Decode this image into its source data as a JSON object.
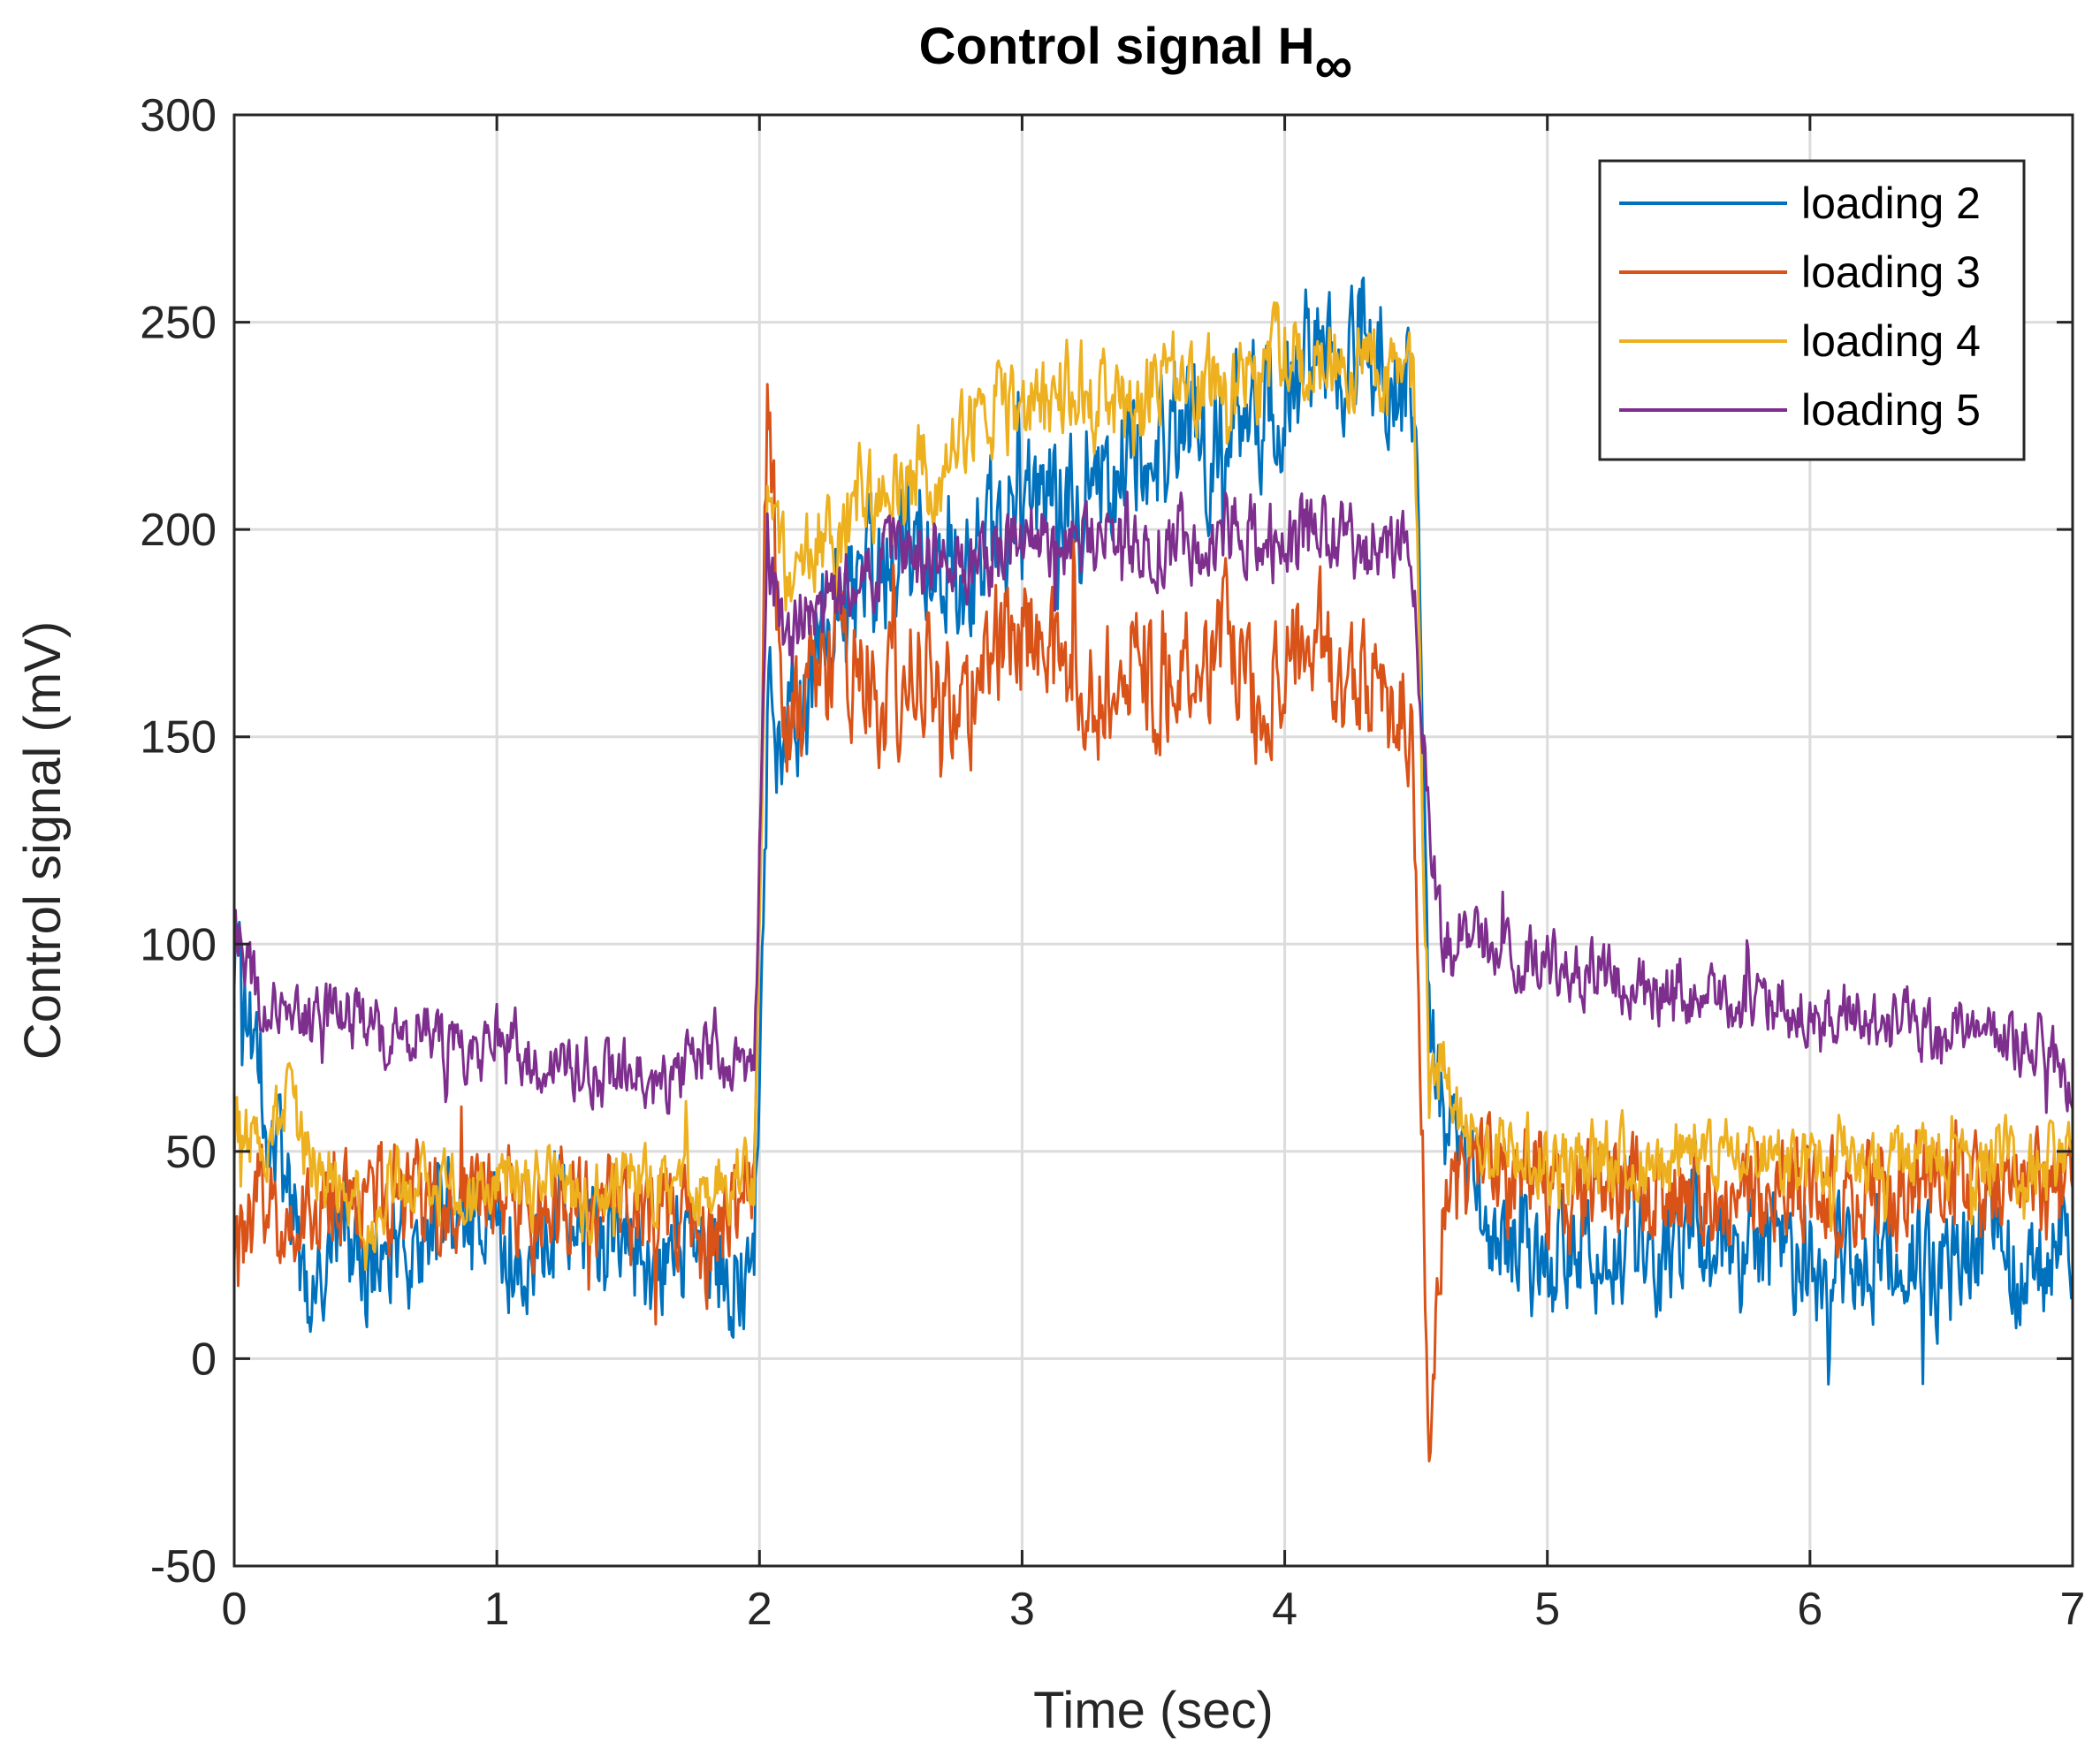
{
  "chart_data": {
    "type": "line",
    "title": "Control signal H",
    "title_subscript": "∞",
    "xlabel": "Time (sec)",
    "ylabel": "Control signal (mV)",
    "xlim": [
      0,
      7
    ],
    "ylim": [
      -50,
      300
    ],
    "xticks": [
      0,
      1,
      2,
      3,
      4,
      5,
      6,
      7
    ],
    "yticks": [
      -50,
      0,
      50,
      100,
      150,
      200,
      250,
      300
    ],
    "xtick_labels": [
      "0",
      "1",
      "2",
      "3",
      "4",
      "5",
      "6",
      "7"
    ],
    "ytick_labels": [
      "-50",
      "0",
      "50",
      "100",
      "150",
      "200",
      "250",
      "300"
    ],
    "grid": true,
    "legend_position": "top-right",
    "series": [
      {
        "name": "loading 2",
        "color": "#0072BD",
        "x": [
          0,
          0.1,
          0.2,
          0.3,
          0.4,
          0.5,
          0.6,
          0.7,
          0.8,
          0.9,
          1.0,
          1.1,
          1.2,
          1.3,
          1.4,
          1.5,
          1.6,
          1.7,
          1.8,
          1.9,
          1.98,
          2.03,
          2.1,
          2.2,
          2.3,
          2.4,
          2.5,
          2.6,
          2.7,
          2.8,
          2.9,
          3.0,
          3.1,
          3.2,
          3.3,
          3.4,
          3.5,
          3.6,
          3.7,
          3.8,
          3.9,
          4.0,
          4.1,
          4.2,
          4.3,
          4.4,
          4.49,
          4.55,
          4.6,
          4.7,
          4.8,
          4.9,
          5.0,
          5.1,
          5.2,
          5.3,
          5.4,
          5.5,
          5.6,
          5.7,
          5.8,
          5.9,
          6.0,
          6.1,
          6.2,
          6.3,
          6.4,
          6.5,
          6.6,
          6.7,
          6.8,
          6.9,
          7.0
        ],
        "values": [
          95,
          70,
          40,
          10,
          35,
          20,
          30,
          25,
          40,
          30,
          35,
          20,
          30,
          40,
          25,
          30,
          20,
          30,
          25,
          20,
          25,
          150,
          150,
          165,
          180,
          190,
          195,
          200,
          195,
          190,
          200,
          205,
          210,
          215,
          210,
          220,
          215,
          225,
          220,
          225,
          230,
          235,
          240,
          245,
          250,
          240,
          235,
          85,
          60,
          40,
          30,
          25,
          20,
          30,
          25,
          30,
          20,
          25,
          30,
          20,
          25,
          30,
          20,
          25,
          20,
          30,
          25,
          20,
          25,
          30,
          20,
          25,
          30
        ]
      },
      {
        "name": "loading 3",
        "color": "#D95319",
        "x": [
          0,
          0.1,
          0.2,
          0.3,
          0.4,
          0.5,
          0.6,
          0.7,
          0.8,
          0.9,
          1.0,
          1.1,
          1.2,
          1.3,
          1.4,
          1.5,
          1.6,
          1.7,
          1.8,
          1.9,
          1.98,
          2.03,
          2.1,
          2.2,
          2.3,
          2.4,
          2.5,
          2.6,
          2.7,
          2.8,
          2.9,
          3.0,
          3.1,
          3.2,
          3.3,
          3.4,
          3.5,
          3.6,
          3.7,
          3.8,
          3.9,
          4.0,
          4.1,
          4.2,
          4.3,
          4.4,
          4.49,
          4.55,
          4.6,
          4.7,
          4.8,
          4.9,
          5.0,
          5.1,
          5.2,
          5.3,
          5.4,
          5.5,
          5.6,
          5.7,
          5.8,
          5.9,
          6.0,
          6.1,
          6.2,
          6.3,
          6.4,
          6.5,
          6.6,
          6.7,
          6.8,
          6.9,
          7.0
        ],
        "values": [
          20,
          40,
          35,
          30,
          40,
          35,
          40,
          38,
          36,
          40,
          38,
          35,
          40,
          36,
          38,
          35,
          30,
          38,
          25,
          35,
          40,
          235,
          150,
          160,
          175,
          165,
          160,
          170,
          165,
          160,
          170,
          175,
          165,
          170,
          160,
          175,
          165,
          160,
          170,
          175,
          160,
          170,
          175,
          165,
          170,
          160,
          150,
          -20,
          30,
          45,
          40,
          45,
          40,
          38,
          42,
          40,
          38,
          40,
          42,
          38,
          40,
          42,
          38,
          40,
          42,
          38,
          40,
          42,
          38,
          40,
          42,
          38,
          40
        ]
      },
      {
        "name": "loading 4",
        "color": "#EDB120",
        "x": [
          0,
          0.1,
          0.2,
          0.3,
          0.4,
          0.5,
          0.6,
          0.7,
          0.8,
          0.9,
          1.0,
          1.1,
          1.2,
          1.3,
          1.4,
          1.5,
          1.6,
          1.7,
          1.8,
          1.9,
          1.98,
          2.03,
          2.1,
          2.2,
          2.3,
          2.4,
          2.5,
          2.6,
          2.7,
          2.8,
          2.9,
          3.0,
          3.1,
          3.2,
          3.3,
          3.4,
          3.5,
          3.6,
          3.7,
          3.8,
          3.9,
          4.0,
          4.1,
          4.2,
          4.3,
          4.4,
          4.49,
          4.55,
          4.6,
          4.7,
          4.8,
          4.9,
          5.0,
          5.1,
          5.2,
          5.3,
          5.4,
          5.5,
          5.6,
          5.7,
          5.8,
          5.9,
          6.0,
          6.1,
          6.2,
          6.3,
          6.4,
          6.5,
          6.6,
          6.7,
          6.8,
          6.9,
          7.0
        ],
        "values": [
          55,
          50,
          60,
          45,
          40,
          30,
          45,
          40,
          42,
          38,
          45,
          40,
          42,
          35,
          40,
          45,
          40,
          42,
          38,
          45,
          40,
          210,
          190,
          195,
          200,
          210,
          205,
          215,
          210,
          225,
          230,
          225,
          230,
          235,
          230,
          225,
          235,
          240,
          235,
          240,
          235,
          245,
          240,
          238,
          242,
          235,
          232,
          60,
          70,
          55,
          50,
          52,
          48,
          45,
          50,
          48,
          45,
          50,
          48,
          45,
          50,
          48,
          45,
          50,
          48,
          45,
          50,
          48,
          45,
          50,
          48,
          45,
          50
        ]
      },
      {
        "name": "loading 5",
        "color": "#7E2F8E",
        "x": [
          0,
          0.1,
          0.2,
          0.3,
          0.4,
          0.5,
          0.6,
          0.7,
          0.8,
          0.9,
          1.0,
          1.1,
          1.2,
          1.3,
          1.4,
          1.5,
          1.6,
          1.7,
          1.8,
          1.9,
          1.98,
          2.03,
          2.1,
          2.2,
          2.3,
          2.4,
          2.5,
          2.6,
          2.7,
          2.8,
          2.9,
          3.0,
          3.1,
          3.2,
          3.3,
          3.4,
          3.5,
          3.6,
          3.7,
          3.8,
          3.9,
          4.0,
          4.1,
          4.2,
          4.3,
          4.4,
          4.49,
          4.55,
          4.6,
          4.7,
          4.8,
          4.9,
          5.0,
          5.1,
          5.2,
          5.3,
          5.4,
          5.5,
          5.6,
          5.7,
          5.8,
          5.9,
          6.0,
          6.1,
          6.2,
          6.3,
          6.4,
          6.5,
          6.6,
          6.7,
          6.8,
          6.9,
          7.0
        ],
        "values": [
          105,
          85,
          90,
          80,
          85,
          80,
          78,
          80,
          75,
          72,
          78,
          75,
          70,
          72,
          68,
          70,
          65,
          70,
          75,
          70,
          65,
          195,
          175,
          180,
          185,
          190,
          195,
          190,
          195,
          190,
          195,
          200,
          195,
          200,
          195,
          200,
          195,
          198,
          195,
          200,
          198,
          195,
          200,
          198,
          195,
          198,
          190,
          130,
          100,
          105,
          100,
          98,
          95,
          92,
          95,
          90,
          88,
          90,
          88,
          85,
          88,
          85,
          82,
          85,
          82,
          80,
          82,
          78,
          80,
          78,
          75,
          78,
          60
        ]
      }
    ]
  }
}
